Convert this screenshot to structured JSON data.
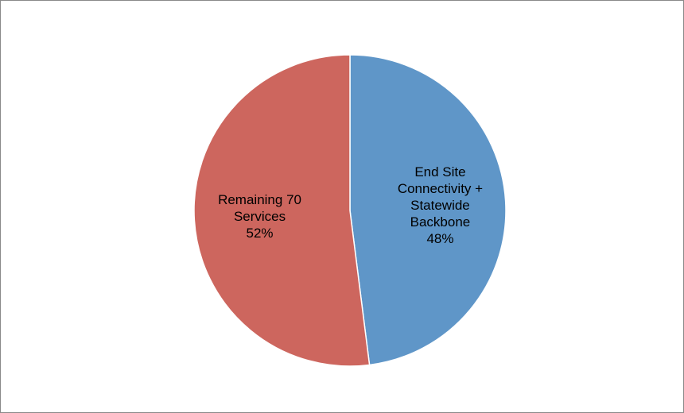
{
  "chart_data": {
    "type": "pie",
    "title": "",
    "start_angle_deg": 0,
    "direction": "clockwise",
    "legend": "none",
    "slices": [
      {
        "label_lines": [
          "End Site",
          "Connectivity +",
          "Statewide",
          "Backbone"
        ],
        "percent_label": "48%",
        "value": 48,
        "color": "#5f96c8"
      },
      {
        "label_lines": [
          "Remaining 70",
          "Services"
        ],
        "percent_label": "52%",
        "value": 52,
        "color": "#cd665e"
      }
    ]
  }
}
